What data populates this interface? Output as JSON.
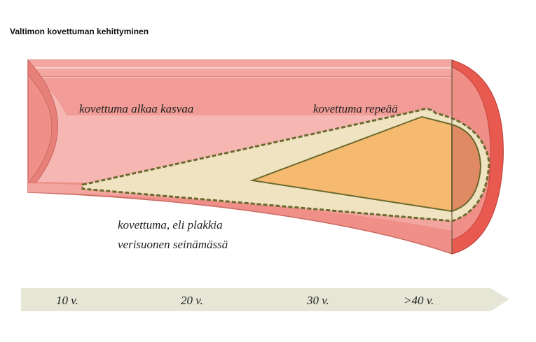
{
  "title": "Valtimon kovettuman kehittyminen",
  "labels": [
    "kovettuma alkaa kasvaa",
    "kovettuma repeää",
    "kovettuma, eli plakkia",
    "verisuonen seinämässä"
  ],
  "timeline": [
    "10 v.",
    "20 v.",
    "30 v.",
    ">40 v."
  ]
}
